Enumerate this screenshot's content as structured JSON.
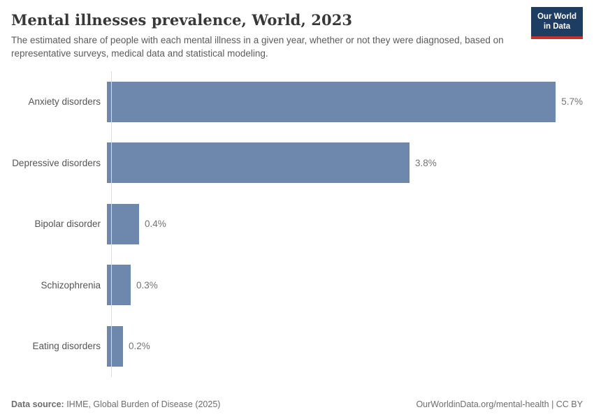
{
  "header": {
    "title": "Mental illnesses prevalence, World, 2023",
    "subtitle": "The estimated share of people with each mental illness in a given year, whether or not they were diagnosed, based on representative surveys, medical data and statistical modeling.",
    "logo": {
      "line1": "Our World",
      "line2": "in Data"
    }
  },
  "chart_data": {
    "type": "bar",
    "orientation": "horizontal",
    "title": "Mental illnesses prevalence, World, 2023",
    "xlabel": "",
    "ylabel": "",
    "categories": [
      "Anxiety disorders",
      "Depressive disorders",
      "Bipolar disorder",
      "Schizophrenia",
      "Eating disorders"
    ],
    "values": [
      5.7,
      3.8,
      0.4,
      0.3,
      0.2
    ],
    "value_labels": [
      "5.7%",
      "3.8%",
      "0.4%",
      "0.3%",
      "0.2%"
    ],
    "unit": "%",
    "xlim": [
      0,
      6.05
    ],
    "grid": false,
    "legend": false,
    "bar_color": "#6d87ad",
    "axis_line_color": "#dcdcdc"
  },
  "footer": {
    "source_label": "Data source:",
    "source_text": " IHME, Global Burden of Disease (2025)",
    "link_text": "OurWorldinData.org/mental-health | CC BY"
  }
}
